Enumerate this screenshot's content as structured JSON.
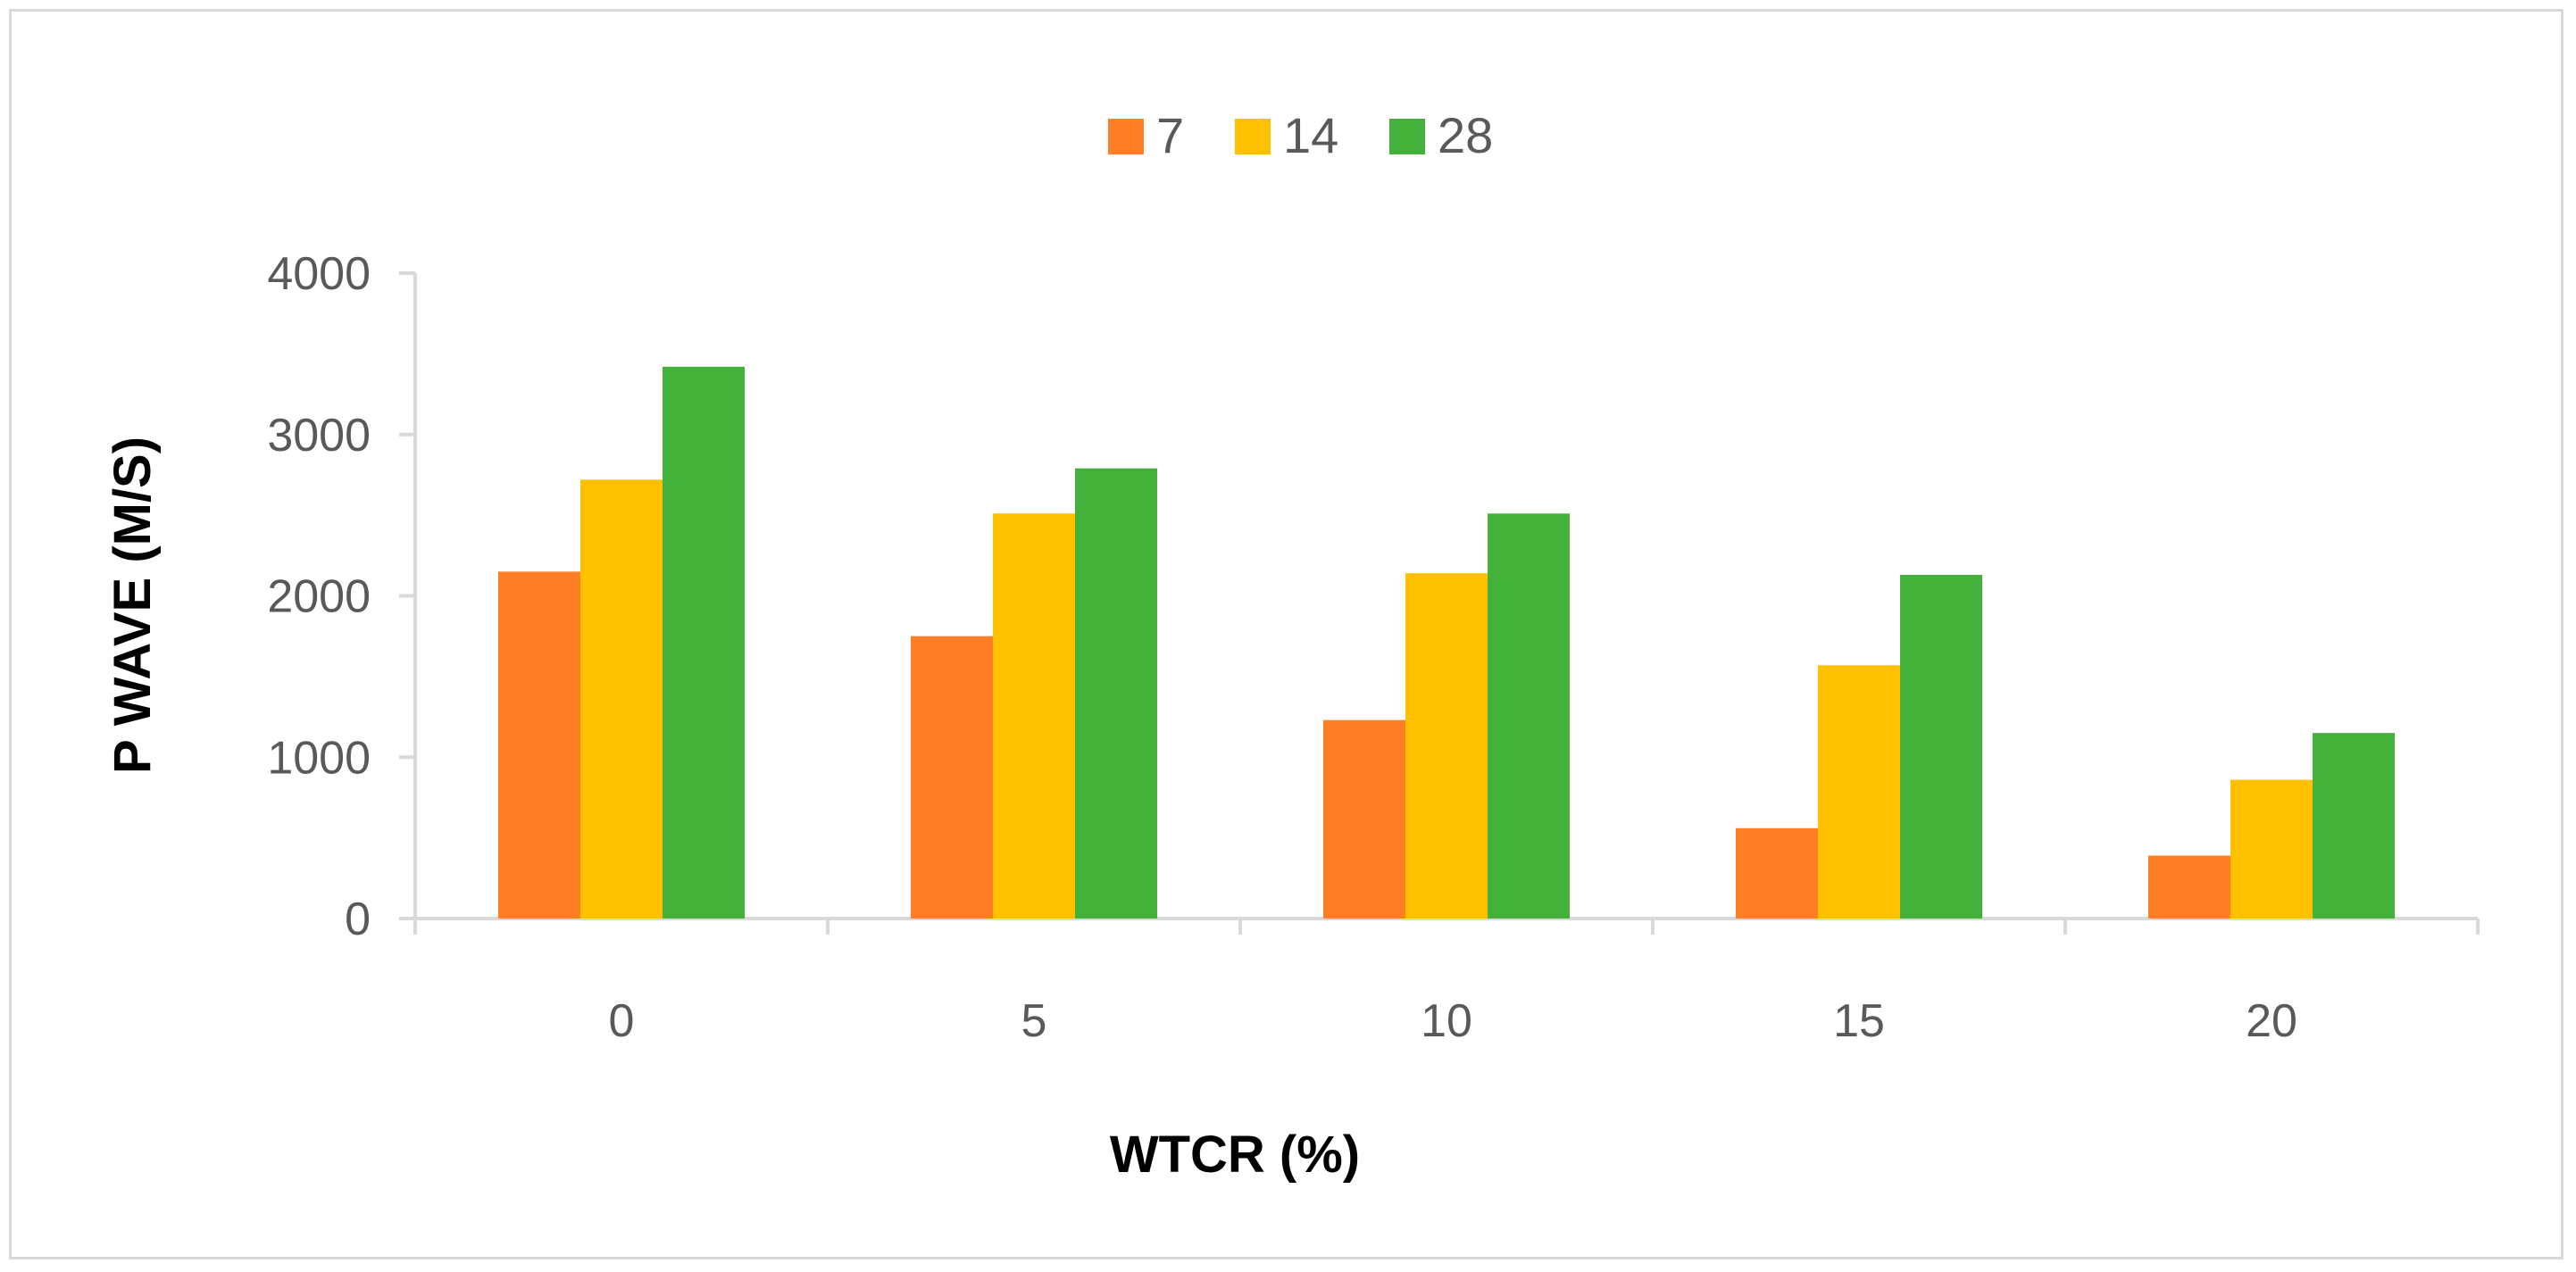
{
  "chart_data": {
    "type": "bar",
    "title": "",
    "xlabel": "WTCR (%)",
    "ylabel": "P WAVE (M/S)",
    "categories": [
      "0",
      "5",
      "10",
      "15",
      "20"
    ],
    "series": [
      {
        "name": "7",
        "color": "#ff7f27",
        "values": [
          2150,
          1750,
          1230,
          560,
          390
        ]
      },
      {
        "name": "14",
        "color": "#ffc000",
        "values": [
          2720,
          2510,
          2140,
          1570,
          860
        ]
      },
      {
        "name": "28",
        "color": "#43b13a",
        "values": [
          3420,
          2790,
          2510,
          2130,
          1150
        ]
      }
    ],
    "ylim": [
      0,
      4000
    ],
    "yticks": [
      0,
      1000,
      2000,
      3000,
      4000
    ],
    "grid": false,
    "legend_position": "top-center",
    "axis_color": "#d9d9d9"
  }
}
